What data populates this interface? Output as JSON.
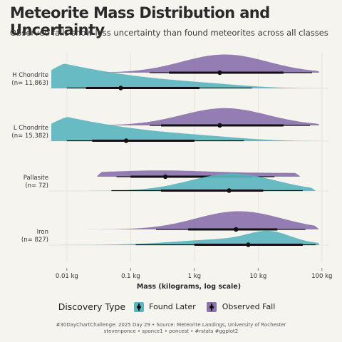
{
  "title": "Meteorite Mass Distribution and Uncertainty",
  "subtitle": "Observed falls show less uncertainty than found meteorites across all classes",
  "caption": {
    "line1": "#30DayChartChallenge: 2025 Day 29 • Source: Meteorite Landings, University of Rochester",
    "line2": "stevenponce • sponce1 • poncest • #rstats #ggplot2"
  },
  "legend": {
    "title": "Discovery Type",
    "items": [
      {
        "label": "Found Later",
        "color": "#5bb5bf"
      },
      {
        "label": "Observed Fall",
        "color": "#8a72ad"
      }
    ]
  },
  "chart_data": {
    "type": "halfeye",
    "xlabel": "Mass (kilograms, log scale)",
    "x_scale": "log10",
    "xlim": [
      0.006,
      130
    ],
    "x_ticks": [
      0.01,
      0.1,
      1,
      10,
      100
    ],
    "x_tick_labels": [
      "0.01 kg",
      "0.1 kg",
      "1 kg",
      "10 kg",
      "100 kg"
    ],
    "categories": [
      "H Chondrite\n(n= 11,863)",
      "L Chondrite\n(n= 15,382)",
      "Pallasite\n(n= 72)",
      "Iron\n(n= 827)"
    ],
    "series": [
      {
        "name": "Found Later",
        "color": "#5bb5bf",
        "groups": [
          {
            "min": 0.004,
            "max": 100,
            "q66": [
              0.02,
              1.2
            ],
            "q95": [
              0.01,
              8
            ],
            "median": 0.07,
            "peak": 0.009,
            "peak_height": 1.0,
            "shape": "found-small"
          },
          {
            "min": 0.004,
            "max": 100,
            "q66": [
              0.025,
              1.0
            ],
            "q95": [
              0.01,
              6
            ],
            "median": 0.085,
            "peak": 0.01,
            "peak_height": 1.0,
            "shape": "found-small"
          },
          {
            "min": 0.02,
            "max": 80,
            "q66": [
              0.3,
              12
            ],
            "q95": [
              0.05,
              50
            ],
            "median": 3.5,
            "peak": 4,
            "peak_height": 0.55,
            "shape": "bell"
          },
          {
            "min": 0.007,
            "max": 100,
            "q66": [
              1.0,
              50
            ],
            "q95": [
              0.12,
              80
            ],
            "median": 7,
            "peak": 15,
            "peak_height": 0.55,
            "shape": "iron"
          }
        ]
      },
      {
        "name": "Observed Fall",
        "color": "#8a72ad",
        "groups": [
          {
            "min": 0.03,
            "max": 100,
            "q66": [
              0.4,
              25
            ],
            "q95": [
              0.2,
              70
            ],
            "median": 2.5,
            "peak": 3,
            "peak_height": 0.58,
            "shape": "bell"
          },
          {
            "min": 0.03,
            "max": 100,
            "q66": [
              0.3,
              25
            ],
            "q95": [
              0.2,
              65
            ],
            "median": 2.5,
            "peak": 3,
            "peak_height": 0.55,
            "shape": "bell"
          },
          {
            "min": 0.03,
            "max": 45,
            "q66": [
              0.1,
              8
            ],
            "q95": [
              0.06,
              18
            ],
            "median": 0.35,
            "peak": 0.3,
            "peak_height": 0.2,
            "shape": "flat"
          },
          {
            "min": 0.012,
            "max": 90,
            "q66": [
              0.8,
              20
            ],
            "q95": [
              0.25,
              55
            ],
            "median": 4.5,
            "peak": 5,
            "peak_height": 0.58,
            "shape": "bell"
          }
        ]
      }
    ],
    "grid": true
  }
}
